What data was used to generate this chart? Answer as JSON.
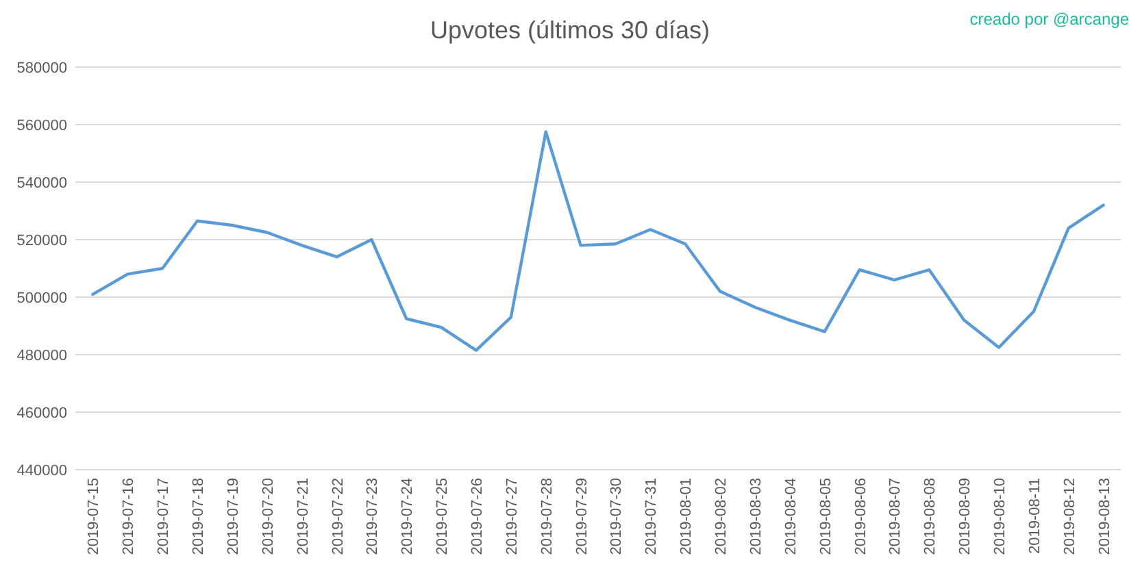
{
  "chart_data": {
    "type": "line",
    "title": "Upvotes (últimos 30 días)",
    "annotations": [
      "creado por @arcange"
    ],
    "categories": [
      "2019-07-15",
      "2019-07-16",
      "2019-07-17",
      "2019-07-18",
      "2019-07-19",
      "2019-07-20",
      "2019-07-21",
      "2019-07-22",
      "2019-07-23",
      "2019-07-24",
      "2019-07-25",
      "2019-07-26",
      "2019-07-27",
      "2019-07-28",
      "2019-07-29",
      "2019-07-30",
      "2019-07-31",
      "2019-08-01",
      "2019-08-02",
      "2019-08-03",
      "2019-08-04",
      "2019-08-05",
      "2019-08-06",
      "2019-08-07",
      "2019-08-08",
      "2019-08-09",
      "2019-08-10",
      "2019-08-11",
      "2019-08-12",
      "2019-08-13"
    ],
    "series": [
      {
        "color": "#5b9bd5",
        "values": [
          501000,
          508000,
          510000,
          526500,
          525000,
          522500,
          518000,
          514000,
          520000,
          492500,
          489500,
          481500,
          493000,
          557500,
          518000,
          518500,
          523500,
          518500,
          502000,
          496500,
          492000,
          488000,
          509500,
          506000,
          509500,
          492000,
          482500,
          495000,
          524000,
          532000
        ]
      }
    ],
    "ylim": [
      440000,
      580000
    ],
    "yticks": [
      440000,
      460000,
      480000,
      500000,
      520000,
      540000,
      560000,
      580000
    ],
    "grid": "y",
    "marker": "none",
    "line_style": "solid"
  }
}
